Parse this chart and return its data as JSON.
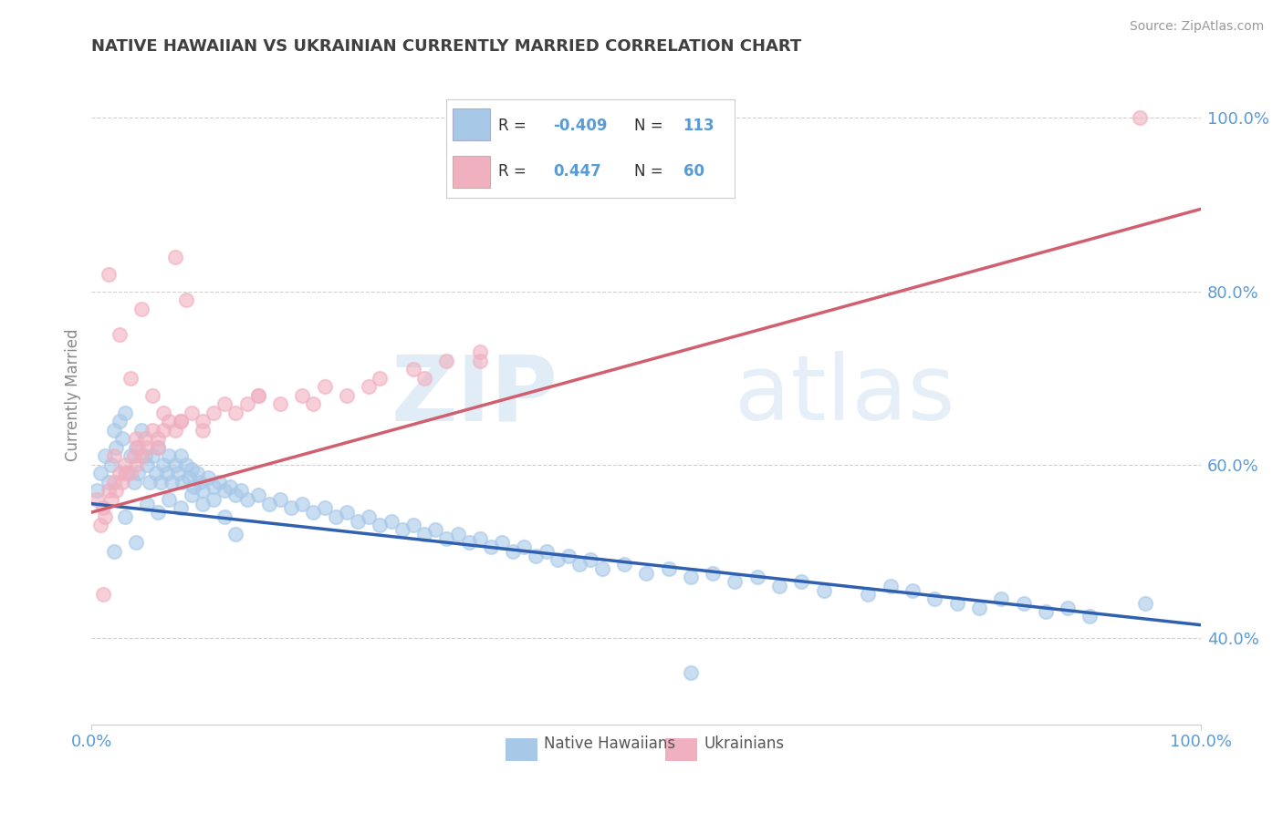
{
  "title": "NATIVE HAWAIIAN VS UKRAINIAN CURRENTLY MARRIED CORRELATION CHART",
  "source_text": "Source: ZipAtlas.com",
  "ylabel": "Currently Married",
  "watermark_zip": "ZIP",
  "watermark_atlas": "atlas",
  "x_min": 0.0,
  "x_max": 1.0,
  "y_min": 0.3,
  "y_max": 1.06,
  "y_ticks": [
    0.4,
    0.6,
    0.8,
    1.0
  ],
  "y_tick_labels": [
    "40.0%",
    "60.0%",
    "80.0%",
    "100.0%"
  ],
  "x_ticks": [
    0.0,
    1.0
  ],
  "x_tick_labels": [
    "0.0%",
    "100.0%"
  ],
  "legend_R1": "-0.409",
  "legend_N1": "113",
  "legend_R2": "0.447",
  "legend_N2": "60",
  "blue_color": "#a8c8e8",
  "pink_color": "#f0b0c0",
  "blue_line_color": "#3060b0",
  "pink_line_color": "#d06070",
  "title_color": "#404040",
  "axis_tick_color": "#5b9bd5",
  "legend_text_color": "#5b9bd5",
  "background_color": "#ffffff",
  "grid_color": "#d0d0d0",
  "blue_trend_x": [
    0.0,
    1.0
  ],
  "blue_trend_y": [
    0.555,
    0.415
  ],
  "pink_trend_x": [
    0.0,
    1.0
  ],
  "pink_trend_y": [
    0.545,
    0.895
  ],
  "blue_scatter_x": [
    0.005,
    0.008,
    0.012,
    0.015,
    0.018,
    0.02,
    0.022,
    0.025,
    0.028,
    0.03,
    0.032,
    0.035,
    0.038,
    0.04,
    0.042,
    0.045,
    0.048,
    0.05,
    0.052,
    0.055,
    0.058,
    0.06,
    0.062,
    0.065,
    0.068,
    0.07,
    0.072,
    0.075,
    0.078,
    0.08,
    0.082,
    0.085,
    0.088,
    0.09,
    0.092,
    0.095,
    0.098,
    0.1,
    0.105,
    0.11,
    0.115,
    0.12,
    0.125,
    0.13,
    0.135,
    0.14,
    0.15,
    0.16,
    0.17,
    0.18,
    0.19,
    0.2,
    0.21,
    0.22,
    0.23,
    0.24,
    0.25,
    0.26,
    0.27,
    0.28,
    0.29,
    0.3,
    0.31,
    0.32,
    0.33,
    0.34,
    0.35,
    0.36,
    0.37,
    0.38,
    0.39,
    0.4,
    0.41,
    0.42,
    0.43,
    0.44,
    0.45,
    0.46,
    0.48,
    0.5,
    0.52,
    0.54,
    0.56,
    0.58,
    0.6,
    0.62,
    0.64,
    0.66,
    0.7,
    0.72,
    0.74,
    0.76,
    0.78,
    0.8,
    0.82,
    0.84,
    0.86,
    0.88,
    0.9,
    0.95,
    0.02,
    0.03,
    0.04,
    0.05,
    0.06,
    0.07,
    0.08,
    0.09,
    0.1,
    0.11,
    0.12,
    0.13,
    0.54
  ],
  "blue_scatter_y": [
    0.57,
    0.59,
    0.61,
    0.58,
    0.6,
    0.64,
    0.62,
    0.65,
    0.63,
    0.66,
    0.59,
    0.61,
    0.58,
    0.62,
    0.59,
    0.64,
    0.61,
    0.6,
    0.58,
    0.61,
    0.59,
    0.62,
    0.58,
    0.6,
    0.59,
    0.61,
    0.58,
    0.6,
    0.59,
    0.61,
    0.58,
    0.6,
    0.585,
    0.595,
    0.575,
    0.59,
    0.58,
    0.57,
    0.585,
    0.575,
    0.58,
    0.57,
    0.575,
    0.565,
    0.57,
    0.56,
    0.565,
    0.555,
    0.56,
    0.55,
    0.555,
    0.545,
    0.55,
    0.54,
    0.545,
    0.535,
    0.54,
    0.53,
    0.535,
    0.525,
    0.53,
    0.52,
    0.525,
    0.515,
    0.52,
    0.51,
    0.515,
    0.505,
    0.51,
    0.5,
    0.505,
    0.495,
    0.5,
    0.49,
    0.495,
    0.485,
    0.49,
    0.48,
    0.485,
    0.475,
    0.48,
    0.47,
    0.475,
    0.465,
    0.47,
    0.46,
    0.465,
    0.455,
    0.45,
    0.46,
    0.455,
    0.445,
    0.44,
    0.435,
    0.445,
    0.44,
    0.43,
    0.435,
    0.425,
    0.44,
    0.5,
    0.54,
    0.51,
    0.555,
    0.545,
    0.56,
    0.55,
    0.565,
    0.555,
    0.56,
    0.54,
    0.52,
    0.36
  ],
  "pink_scatter_x": [
    0.005,
    0.008,
    0.01,
    0.012,
    0.015,
    0.018,
    0.02,
    0.022,
    0.025,
    0.028,
    0.03,
    0.035,
    0.038,
    0.04,
    0.042,
    0.045,
    0.048,
    0.05,
    0.055,
    0.06,
    0.065,
    0.07,
    0.075,
    0.08,
    0.09,
    0.1,
    0.11,
    0.12,
    0.13,
    0.14,
    0.15,
    0.17,
    0.19,
    0.21,
    0.23,
    0.26,
    0.29,
    0.32,
    0.35,
    0.02,
    0.03,
    0.04,
    0.06,
    0.08,
    0.1,
    0.15,
    0.2,
    0.25,
    0.3,
    0.35,
    0.015,
    0.025,
    0.035,
    0.045,
    0.055,
    0.065,
    0.075,
    0.085,
    0.945,
    0.01
  ],
  "pink_scatter_y": [
    0.56,
    0.53,
    0.55,
    0.54,
    0.57,
    0.56,
    0.58,
    0.57,
    0.59,
    0.58,
    0.6,
    0.59,
    0.61,
    0.6,
    0.62,
    0.61,
    0.63,
    0.62,
    0.64,
    0.63,
    0.64,
    0.65,
    0.64,
    0.65,
    0.66,
    0.65,
    0.66,
    0.67,
    0.66,
    0.67,
    0.68,
    0.67,
    0.68,
    0.69,
    0.68,
    0.7,
    0.71,
    0.72,
    0.73,
    0.61,
    0.59,
    0.63,
    0.62,
    0.65,
    0.64,
    0.68,
    0.67,
    0.69,
    0.7,
    0.72,
    0.82,
    0.75,
    0.7,
    0.78,
    0.68,
    0.66,
    0.84,
    0.79,
    1.0,
    0.45
  ]
}
